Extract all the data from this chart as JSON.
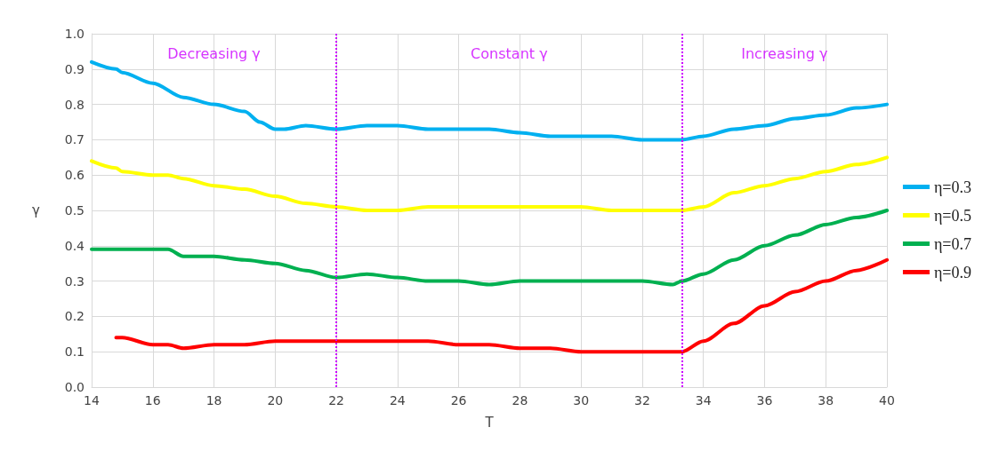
{
  "chart_data": {
    "type": "line",
    "xlabel": "T",
    "ylabel": "γ",
    "xlim": [
      14,
      40
    ],
    "xticks": [
      14,
      16,
      18,
      20,
      22,
      24,
      26,
      28,
      30,
      32,
      34,
      36,
      38,
      40
    ],
    "ylim": [
      0,
      1
    ],
    "yticks": [
      {
        "value": 0,
        "label": "0.0"
      },
      0.1,
      0.2,
      0.3,
      0.4,
      0.5,
      0.6,
      0.7,
      0.8,
      0.9,
      {
        "value": 1,
        "label": "1.0"
      }
    ],
    "grid": true,
    "legend": "right",
    "marker": "none",
    "line_style": "solid",
    "series": [
      {
        "name": "η=0.3",
        "color": "#00b0f0",
        "x": [
          14,
          14.8,
          15,
          16,
          17,
          18,
          19,
          19.5,
          20,
          20.3,
          21,
          22,
          23,
          24,
          25,
          26,
          27,
          28,
          29,
          30,
          31,
          32,
          33,
          33.3,
          34,
          35,
          36,
          37,
          38,
          39,
          40
        ],
        "values": [
          0.92,
          0.9,
          0.89,
          0.86,
          0.82,
          0.8,
          0.78,
          0.75,
          0.73,
          0.73,
          0.74,
          0.73,
          0.74,
          0.74,
          0.73,
          0.73,
          0.73,
          0.72,
          0.71,
          0.71,
          0.71,
          0.7,
          0.7,
          0.7,
          0.71,
          0.73,
          0.74,
          0.76,
          0.77,
          0.79,
          0.8
        ]
      },
      {
        "name": "η=0.5",
        "color": "#ffff00",
        "x": [
          14,
          14.8,
          15,
          16,
          16.5,
          17,
          18,
          19,
          20,
          21,
          22,
          23,
          23.5,
          24,
          25,
          26,
          27,
          28,
          29,
          30,
          31,
          32,
          33,
          33.3,
          34,
          35,
          36,
          37,
          38,
          39,
          40
        ],
        "values": [
          0.64,
          0.62,
          0.61,
          0.6,
          0.6,
          0.59,
          0.57,
          0.56,
          0.54,
          0.52,
          0.51,
          0.5,
          0.5,
          0.5,
          0.51,
          0.51,
          0.51,
          0.51,
          0.51,
          0.51,
          0.5,
          0.5,
          0.5,
          0.5,
          0.51,
          0.55,
          0.57,
          0.59,
          0.61,
          0.63,
          0.65
        ]
      },
      {
        "name": "η=0.7",
        "color": "#00b050",
        "x": [
          14,
          15,
          16,
          16.5,
          17,
          18,
          19,
          20,
          21,
          22,
          23,
          24,
          25,
          26,
          27,
          28,
          29,
          30,
          31,
          32,
          33,
          33.3,
          34,
          35,
          36,
          37,
          38,
          39,
          40
        ],
        "values": [
          0.39,
          0.39,
          0.39,
          0.39,
          0.37,
          0.37,
          0.36,
          0.35,
          0.33,
          0.31,
          0.32,
          0.31,
          0.3,
          0.3,
          0.29,
          0.3,
          0.3,
          0.3,
          0.3,
          0.3,
          0.29,
          0.3,
          0.32,
          0.36,
          0.4,
          0.43,
          0.46,
          0.48,
          0.5
        ]
      },
      {
        "name": "η=0.9",
        "color": "#ff0000",
        "x": [
          14.8,
          15,
          16,
          16.5,
          17,
          18,
          19,
          20,
          21,
          22,
          23,
          24,
          25,
          26,
          27,
          28,
          29,
          30,
          31,
          32,
          33,
          33.3,
          34,
          35,
          36,
          37,
          38,
          39,
          40
        ],
        "values": [
          0.14,
          0.14,
          0.12,
          0.12,
          0.11,
          0.12,
          0.12,
          0.13,
          0.13,
          0.13,
          0.13,
          0.13,
          0.13,
          0.12,
          0.12,
          0.11,
          0.11,
          0.1,
          0.1,
          0.1,
          0.1,
          0.1,
          0.13,
          0.18,
          0.23,
          0.27,
          0.3,
          0.33,
          0.36
        ]
      }
    ],
    "ref_lines": [
      {
        "axis": "x",
        "value": 22,
        "color": "#cc00ff",
        "line_style": "dotted"
      },
      {
        "axis": "x",
        "value": 33.3,
        "color": "#cc00ff",
        "line_style": "dotted"
      }
    ],
    "annotations": [
      "Decreasing γ",
      "Constant γ",
      "Increasing γ"
    ]
  }
}
